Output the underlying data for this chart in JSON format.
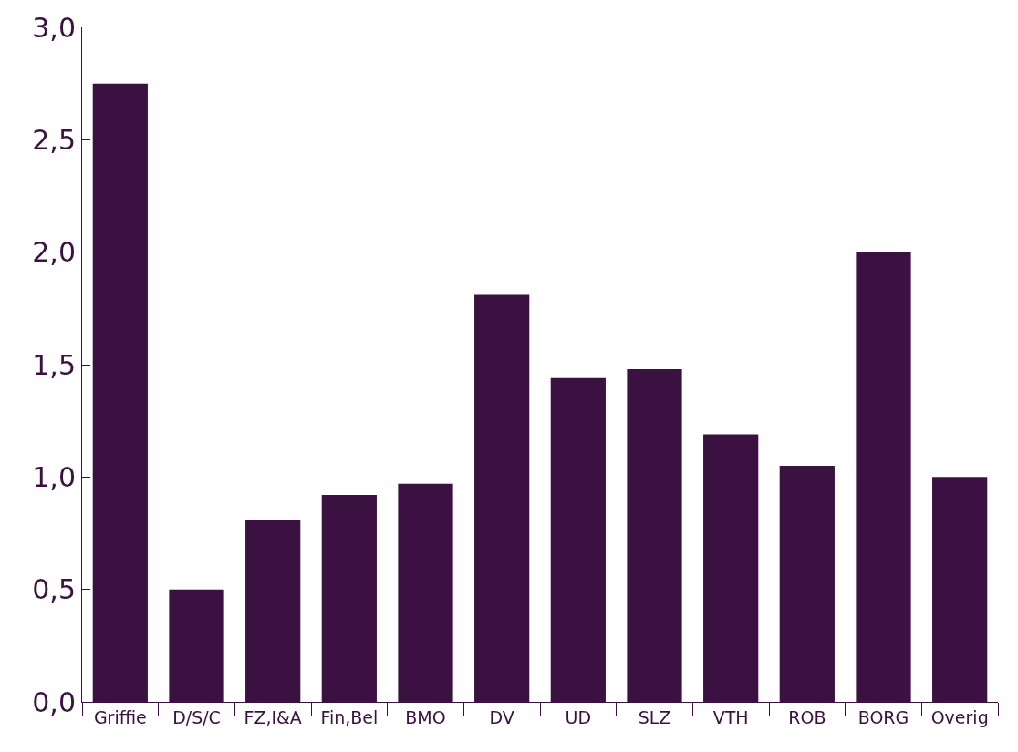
{
  "chart_data": {
    "type": "bar",
    "categories": [
      "Griffie",
      "D/S/C",
      "FZ,I&A",
      "Fin,Bel",
      "BMO",
      "DV",
      "UD",
      "SLZ",
      "VTH",
      "ROB",
      "BORG",
      "Overig"
    ],
    "values": [
      2.75,
      0.5,
      0.81,
      0.92,
      0.97,
      1.81,
      1.44,
      1.48,
      1.19,
      1.05,
      2.0,
      1.0
    ],
    "color": "#3b1142",
    "ylim": [
      0,
      3
    ],
    "yticks": [
      {
        "value": 0,
        "label": "0,0"
      },
      {
        "value": 0.5,
        "label": "0,5"
      },
      {
        "value": 1,
        "label": "1,0"
      },
      {
        "value": 1.5,
        "label": "1,5"
      },
      {
        "value": 2,
        "label": "2,0"
      },
      {
        "value": 2.5,
        "label": "2,5"
      },
      {
        "value": 3,
        "label": "3,0"
      }
    ],
    "orientation": "vertical"
  }
}
